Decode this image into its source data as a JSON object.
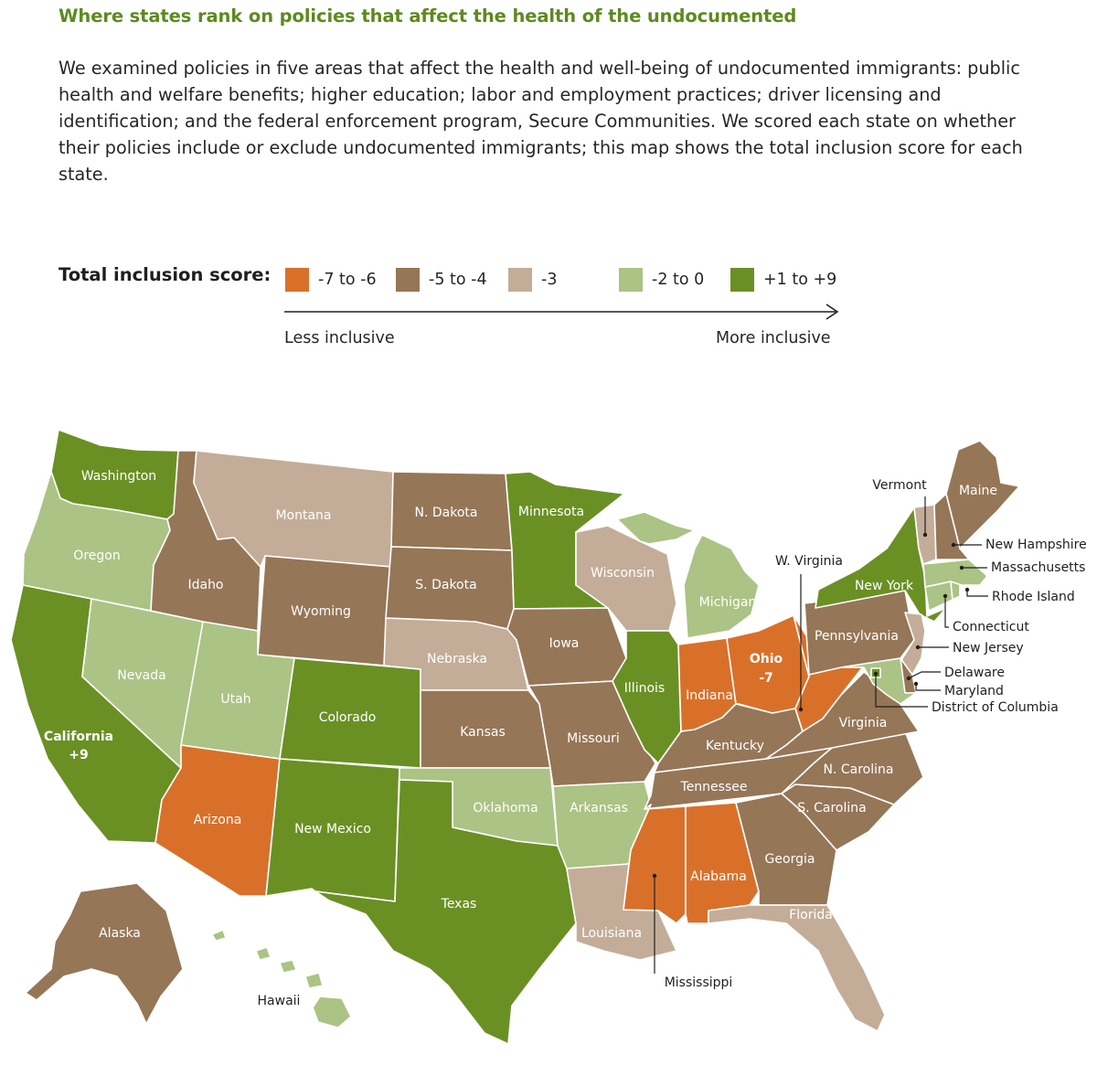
{
  "title": "Where states rank on policies that affect the health of the undocumented",
  "intro": "We examined policies in five areas that affect the health and well-being of undocumented immigrants: public health and welfare benefits; higher education; labor and employment practices; driver licensing and identification; and the federal enforcement program, Secure Communities. We scored each state on whether their policies include or exclude undocumented immigrants; this map shows the total inclusion score for each state.",
  "legend": {
    "title": "Total inclusion score:",
    "items": [
      {
        "label": "-7 to -6",
        "color": "#d9702a"
      },
      {
        "label": "-5 to -4",
        "color": "#957657"
      },
      {
        "label": "-3",
        "color": "#c3ad98"
      },
      {
        "label": "-2 to 0",
        "color": "#abc384"
      },
      {
        "label": "+1 to +9",
        "color": "#6a9024"
      }
    ],
    "less": "Less inclusive",
    "more": "More inclusive"
  },
  "states": {
    "washington": {
      "name": "Washington",
      "category": "+1 to +9"
    },
    "oregon": {
      "name": "Oregon",
      "category": "-2 to 0"
    },
    "california": {
      "name": "California",
      "score": "+9",
      "category": "+1 to +9"
    },
    "nevada": {
      "name": "Nevada",
      "category": "-2 to 0"
    },
    "idaho": {
      "name": "Idaho",
      "category": "-5 to -4"
    },
    "montana": {
      "name": "Montana",
      "category": "-3"
    },
    "wyoming": {
      "name": "Wyoming",
      "category": "-5 to -4"
    },
    "utah": {
      "name": "Utah",
      "category": "-2 to 0"
    },
    "colorado": {
      "name": "Colorado",
      "category": "+1 to +9"
    },
    "arizona": {
      "name": "Arizona",
      "category": "-7 to -6"
    },
    "new_mexico": {
      "name": "New Mexico",
      "category": "+1 to +9"
    },
    "north_dakota": {
      "name": "N. Dakota",
      "category": "-5 to -4"
    },
    "south_dakota": {
      "name": "S. Dakota",
      "category": "-5 to -4"
    },
    "nebraska": {
      "name": "Nebraska",
      "category": "-3"
    },
    "kansas": {
      "name": "Kansas",
      "category": "-5 to -4"
    },
    "oklahoma": {
      "name": "Oklahoma",
      "category": "-2 to 0"
    },
    "texas": {
      "name": "Texas",
      "category": "+1 to +9"
    },
    "minnesota": {
      "name": "Minnesota",
      "category": "+1 to +9"
    },
    "iowa": {
      "name": "Iowa",
      "category": "-5 to -4"
    },
    "missouri": {
      "name": "Missouri",
      "category": "-5 to -4"
    },
    "arkansas": {
      "name": "Arkansas",
      "category": "-2 to 0"
    },
    "louisiana": {
      "name": "Louisiana",
      "category": "-3"
    },
    "wisconsin": {
      "name": "Wisconsin",
      "category": "-3"
    },
    "illinois": {
      "name": "Illinois",
      "category": "+1 to +9"
    },
    "michigan": {
      "name": "Michigan",
      "category": "-2 to 0"
    },
    "indiana": {
      "name": "Indiana",
      "category": "-7 to -6"
    },
    "ohio": {
      "name": "Ohio",
      "score": "-7",
      "category": "-7 to -6"
    },
    "kentucky": {
      "name": "Kentucky",
      "category": "-5 to -4"
    },
    "tennessee": {
      "name": "Tennessee",
      "category": "-5 to -4"
    },
    "mississippi": {
      "name": "Mississippi",
      "category": "-7 to -6"
    },
    "alabama": {
      "name": "Alabama",
      "category": "-7 to -6"
    },
    "georgia": {
      "name": "Georgia",
      "category": "-5 to -4"
    },
    "florida": {
      "name": "Florida",
      "category": "-3"
    },
    "south_carolina": {
      "name": "S. Carolina",
      "category": "-5 to -4"
    },
    "north_carolina": {
      "name": "N. Carolina",
      "category": "-5 to -4"
    },
    "virginia": {
      "name": "Virginia",
      "category": "-5 to -4"
    },
    "west_virginia": {
      "name": "W. Virginia",
      "category": "-7 to -6"
    },
    "pennsylvania": {
      "name": "Pennsylvania",
      "category": "-5 to -4"
    },
    "new_york": {
      "name": "New York",
      "category": "+1 to +9"
    },
    "new_jersey": {
      "name": "New Jersey",
      "category": "-3"
    },
    "delaware": {
      "name": "Delaware",
      "category": "-5 to -4"
    },
    "maryland": {
      "name": "Maryland",
      "category": "-2 to 0"
    },
    "dc": {
      "name": "District of Columbia",
      "category": "+1 to +9"
    },
    "connecticut": {
      "name": "Connecticut",
      "category": "-2 to 0"
    },
    "rhode_island": {
      "name": "Rhode Island",
      "category": "-2 to 0"
    },
    "massachusetts": {
      "name": "Massachusetts",
      "category": "-2 to 0"
    },
    "vermont": {
      "name": "Vermont",
      "category": "-3"
    },
    "new_hampshire": {
      "name": "New Hampshire",
      "category": "-5 to -4"
    },
    "maine": {
      "name": "Maine",
      "category": "-5 to -4"
    },
    "alaska": {
      "name": "Alaska",
      "category": "-5 to -4"
    },
    "hawaii": {
      "name": "Hawaii",
      "category": "-2 to 0"
    }
  }
}
